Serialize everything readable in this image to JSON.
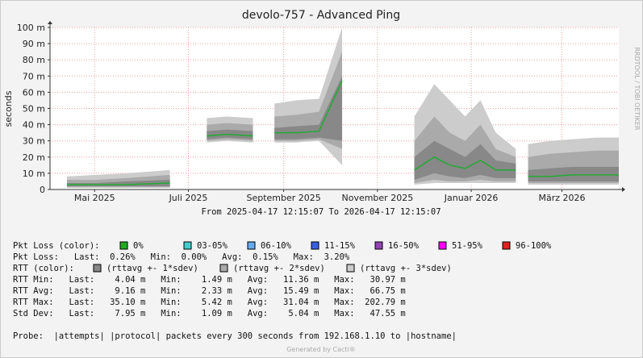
{
  "chart_data": {
    "type": "smoke",
    "title": "devolo-757 - Advanced Ping",
    "subtitle": "From 2025-04-17 12:15:07 To 2026-04-17 12:15:07",
    "y_label": "seconds",
    "side_text": "RRDTOOL / TOBI OETIKER",
    "footer": "Generated by Cacti®",
    "xlim": [
      -15,
      355
    ],
    "xticks": [
      {
        "value": 14,
        "label": "Mai 2025"
      },
      {
        "value": 75,
        "label": "Juli 2025"
      },
      {
        "value": 137,
        "label": "September 2025"
      },
      {
        "value": 198,
        "label": "November 2025"
      },
      {
        "value": 259,
        "label": "Januar 2026"
      },
      {
        "value": 318,
        "label": "März 2026"
      }
    ],
    "ylim": [
      0,
      0.1
    ],
    "yticks": [
      0,
      {
        "value": 0.01,
        "label": "10 m"
      },
      {
        "value": 0.02,
        "label": "20 m"
      },
      {
        "value": 0.03,
        "label": "30 m"
      },
      {
        "value": 0.04,
        "label": "40 m"
      },
      {
        "value": 0.05,
        "label": "50 m"
      },
      {
        "value": 0.06,
        "label": "60 m"
      },
      {
        "value": 0.07,
        "label": "70 m"
      },
      {
        "value": 0.08,
        "label": "80 m"
      },
      {
        "value": 0.09,
        "label": "90 m"
      },
      {
        "value": 0.1,
        "label": "100 m"
      }
    ],
    "grid": true,
    "x": [
      -4,
      15,
      35,
      63,
      75,
      87,
      100,
      117,
      125,
      131,
      145,
      160,
      175,
      190,
      222,
      235,
      245,
      255,
      265,
      275,
      288,
      292,
      296,
      310,
      325,
      340,
      355
    ],
    "median": {
      "color": "#22aa33",
      "values": [
        0.003,
        0.003,
        0.003,
        0.004,
        null,
        0.033,
        0.034,
        0.033,
        null,
        0.035,
        0.035,
        0.036,
        0.067,
        null,
        0.012,
        0.02,
        0.015,
        0.013,
        0.018,
        0.012,
        0.012,
        null,
        0.008,
        0.008,
        0.009,
        0.009,
        0.009
      ]
    },
    "series": [
      {
        "name": "(rttavg +- 3*sdev)",
        "color": "#cccccc",
        "low": [
          0.001,
          0.001,
          0.001,
          0.001,
          null,
          0.029,
          0.03,
          0.029,
          null,
          0.029,
          0.029,
          0.03,
          0.015,
          null,
          0.003,
          0.004,
          0.004,
          0.004,
          0.004,
          0.004,
          0.004,
          null,
          0.003,
          0.003,
          0.003,
          0.003,
          0.003
        ],
        "high": [
          0.008,
          0.009,
          0.01,
          0.012,
          null,
          0.044,
          0.045,
          0.044,
          null,
          0.053,
          0.055,
          0.056,
          0.1,
          null,
          0.045,
          0.065,
          0.055,
          0.045,
          0.055,
          0.035,
          0.025,
          null,
          0.028,
          0.03,
          0.031,
          0.032,
          0.032
        ]
      },
      {
        "name": "(rttavg +- 2*sdev)",
        "color": "#aaaaaa",
        "low": [
          0.0015,
          0.0015,
          0.0015,
          0.0015,
          null,
          0.03,
          0.031,
          0.03,
          null,
          0.03,
          0.03,
          0.031,
          0.025,
          null,
          0.004,
          0.006,
          0.005,
          0.005,
          0.006,
          0.005,
          0.005,
          null,
          0.004,
          0.004,
          0.004,
          0.004,
          0.004
        ],
        "high": [
          0.006,
          0.006,
          0.007,
          0.009,
          null,
          0.04,
          0.041,
          0.04,
          null,
          0.045,
          0.046,
          0.048,
          0.085,
          null,
          0.03,
          0.045,
          0.035,
          0.03,
          0.04,
          0.025,
          0.02,
          null,
          0.02,
          0.022,
          0.023,
          0.024,
          0.024
        ]
      },
      {
        "name": "(rttavg +- 1*sdev)",
        "color": "#888888",
        "low": [
          0.002,
          0.002,
          0.002,
          0.002,
          null,
          0.031,
          0.032,
          0.031,
          null,
          0.031,
          0.031,
          0.032,
          0.03,
          null,
          0.006,
          0.01,
          0.008,
          0.007,
          0.009,
          0.007,
          0.007,
          null,
          0.005,
          0.005,
          0.005,
          0.005,
          0.005
        ],
        "high": [
          0.004,
          0.004,
          0.005,
          0.006,
          null,
          0.036,
          0.037,
          0.036,
          null,
          0.038,
          0.039,
          0.04,
          0.07,
          null,
          0.02,
          0.03,
          0.025,
          0.02,
          0.028,
          0.018,
          0.016,
          null,
          0.012,
          0.013,
          0.014,
          0.014,
          0.014
        ]
      }
    ],
    "legend": {
      "pkt_loss_label": "Pkt Loss (color):",
      "pkt_loss_colors": [
        {
          "label": "0%",
          "color": "#22aa22"
        },
        {
          "label": "03-05%",
          "color": "#44cccc"
        },
        {
          "label": "06-10%",
          "color": "#66aaee"
        },
        {
          "label": "11-15%",
          "color": "#3a5fe0"
        },
        {
          "label": "16-50%",
          "color": "#9044b0"
        },
        {
          "label": "51-95%",
          "color": "#ff00ff"
        },
        {
          "label": "96-100%",
          "color": "#e02020"
        }
      ],
      "rtt_color_label": "RTT (color):",
      "lines": [
        "Pkt Loss:   Last:  0.26%   Min:  0.00%   Avg:  0.15%   Max:  3.20%",
        "RTT Min:   Last:    4.04 m   Min:    1.49 m   Avg:   11.36 m   Max:   30.97 m",
        "RTT Avg:   Last:    9.16 m   Min:    2.33 m   Avg:   15.49 m   Max:   66.75 m",
        "RTT Max:   Last:   35.10 m   Min:    5.42 m   Avg:   31.04 m   Max:  202.79 m",
        "Std Dev:   Last:    7.95 m   Min:    1.09 m   Avg:    5.04 m   Max:   47.55 m"
      ],
      "probe": "Probe:  |attempts| |protocol| packets every 300 seconds from 192.168.1.10 to |hostname|"
    }
  }
}
